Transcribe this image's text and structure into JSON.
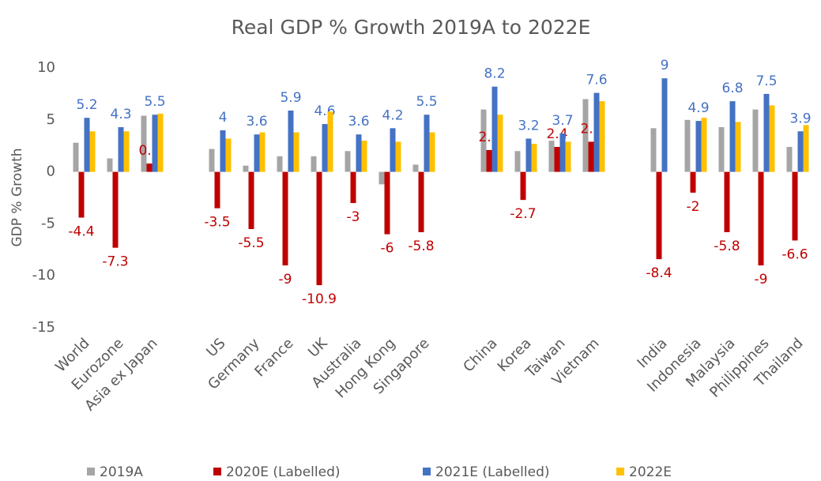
{
  "chart_data": {
    "type": "bar",
    "title": "Real GDP % Growth 2019A to 2022E",
    "y_label": "GDP % Growth",
    "categories": [
      "World",
      "Eurozone",
      "Asia ex Japan",
      null,
      "US",
      "Germany",
      "France",
      "UK",
      "Australia",
      "Hong Kong",
      "Singapore",
      null,
      "China",
      "Korea",
      "Taiwan",
      "Vietnam",
      null,
      "India",
      "Indonesia",
      "Malaysia",
      "Philippines",
      "Thailand"
    ],
    "series": [
      {
        "name": "2019A",
        "color": "#a5a5a5",
        "labelled": false,
        "values": [
          2.8,
          1.3,
          5.4,
          null,
          2.2,
          0.6,
          1.5,
          1.5,
          2.0,
          -1.2,
          0.7,
          null,
          6.0,
          2.0,
          3.0,
          7.0,
          null,
          4.2,
          5.0,
          4.3,
          6.0,
          2.4
        ]
      },
      {
        "name": "2020E (Labelled)",
        "color": "#c00000",
        "labelled": true,
        "values": [
          -4.4,
          -7.3,
          0.8,
          null,
          -3.5,
          -5.5,
          -9,
          -10.9,
          -3,
          -6,
          -5.8,
          null,
          2.1,
          -2.7,
          2.4,
          2.9,
          null,
          -8.4,
          -2,
          -5.8,
          -9,
          -6.6
        ]
      },
      {
        "name": "2021E (Labelled)",
        "color": "#4472c4",
        "labelled": true,
        "values": [
          5.2,
          4.3,
          5.5,
          null,
          4,
          3.6,
          5.9,
          4.6,
          3.6,
          4.2,
          5.5,
          null,
          8.2,
          3.2,
          3.7,
          7.6,
          null,
          9,
          4.9,
          6.8,
          7.5,
          3.9
        ]
      },
      {
        "name": "2022E",
        "color": "#ffc000",
        "labelled": false,
        "values": [
          3.9,
          3.9,
          5.6,
          null,
          3.2,
          3.8,
          3.8,
          5.8,
          3.0,
          2.9,
          3.8,
          null,
          5.5,
          2.7,
          2.9,
          6.8,
          null,
          null,
          5.2,
          4.8,
          6.4,
          4.5
        ]
      }
    ],
    "ylim": [
      -15,
      10
    ],
    "yticks": [
      10,
      5,
      0,
      -5,
      -10,
      -15
    ],
    "grid": false,
    "legend": "bottom"
  }
}
